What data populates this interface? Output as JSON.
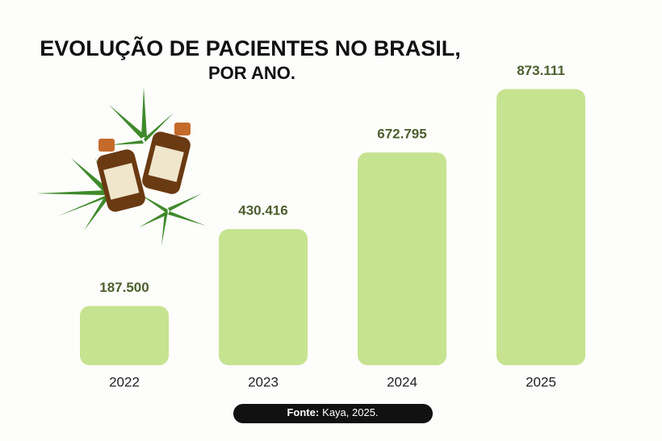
{
  "chart_data": {
    "type": "bar",
    "title": [
      "EVOLUÇÃO DE PACIENTES NO BRASIL,",
      "POR ANO."
    ],
    "categories": [
      "2022",
      "2023",
      "2024",
      "2025"
    ],
    "values": [
      187500,
      430416,
      672795,
      873111
    ],
    "value_labels": [
      "187.500",
      "430.416",
      "672.795",
      "873.111"
    ],
    "color": "#c6e390",
    "ylim": [
      0,
      900000
    ],
    "source": {
      "label": "Fonte:",
      "text": "Kaya, 2025."
    }
  }
}
